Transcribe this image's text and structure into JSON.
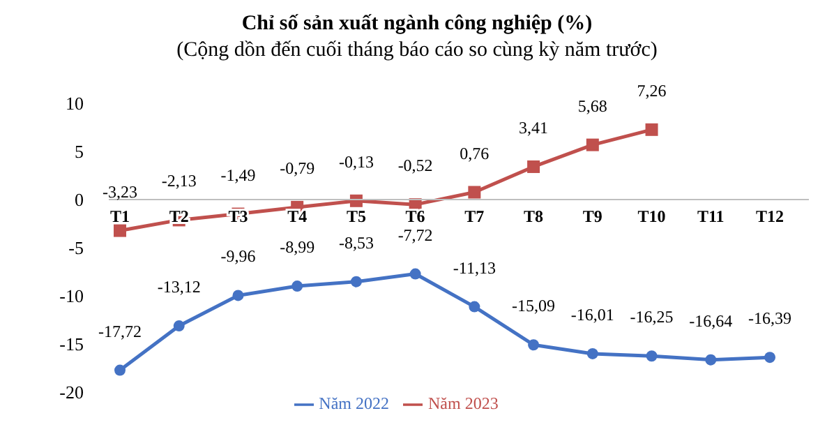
{
  "chart_data": {
    "type": "line",
    "title": "Chỉ số sản xuất ngành công nghiệp (%)",
    "subtitle": "(Cộng dồn đến cuối tháng báo cáo so cùng kỳ năm trước)",
    "categories": [
      "T1",
      "T2",
      "T3",
      "T4",
      "T5",
      "T6",
      "T7",
      "T8",
      "T9",
      "T10",
      "T11",
      "T12"
    ],
    "series": [
      {
        "name": "Năm 2022",
        "color": "#4472c4",
        "marker": "circle",
        "values": [
          -17.72,
          -13.12,
          -9.96,
          -8.99,
          -8.53,
          -7.72,
          -11.13,
          -15.09,
          -16.01,
          -16.25,
          -16.64,
          -16.39
        ],
        "value_labels": [
          "-17,72",
          "-13,12",
          "-9,96",
          "-8,99",
          "-8,53",
          "-7,72",
          "-11,13",
          "-15,09",
          "-16,01",
          "-16,25",
          "-16,64",
          "-16,39"
        ]
      },
      {
        "name": "Năm 2023",
        "color": "#c0504d",
        "marker": "square",
        "values": [
          -3.23,
          -2.13,
          -1.49,
          -0.79,
          -0.13,
          -0.52,
          0.76,
          3.41,
          5.68,
          7.26,
          null,
          null
        ],
        "value_labels": [
          "-3,23",
          "-2,13",
          "-1,49",
          "-0,79",
          "-0,13",
          "-0,52",
          "0,76",
          "3,41",
          "5,68",
          "7,26",
          null,
          null
        ]
      }
    ],
    "ylim": [
      -20,
      10
    ],
    "yticks": [
      -20,
      -15,
      -10,
      -5,
      0,
      5,
      10
    ],
    "legend": "bottom"
  }
}
